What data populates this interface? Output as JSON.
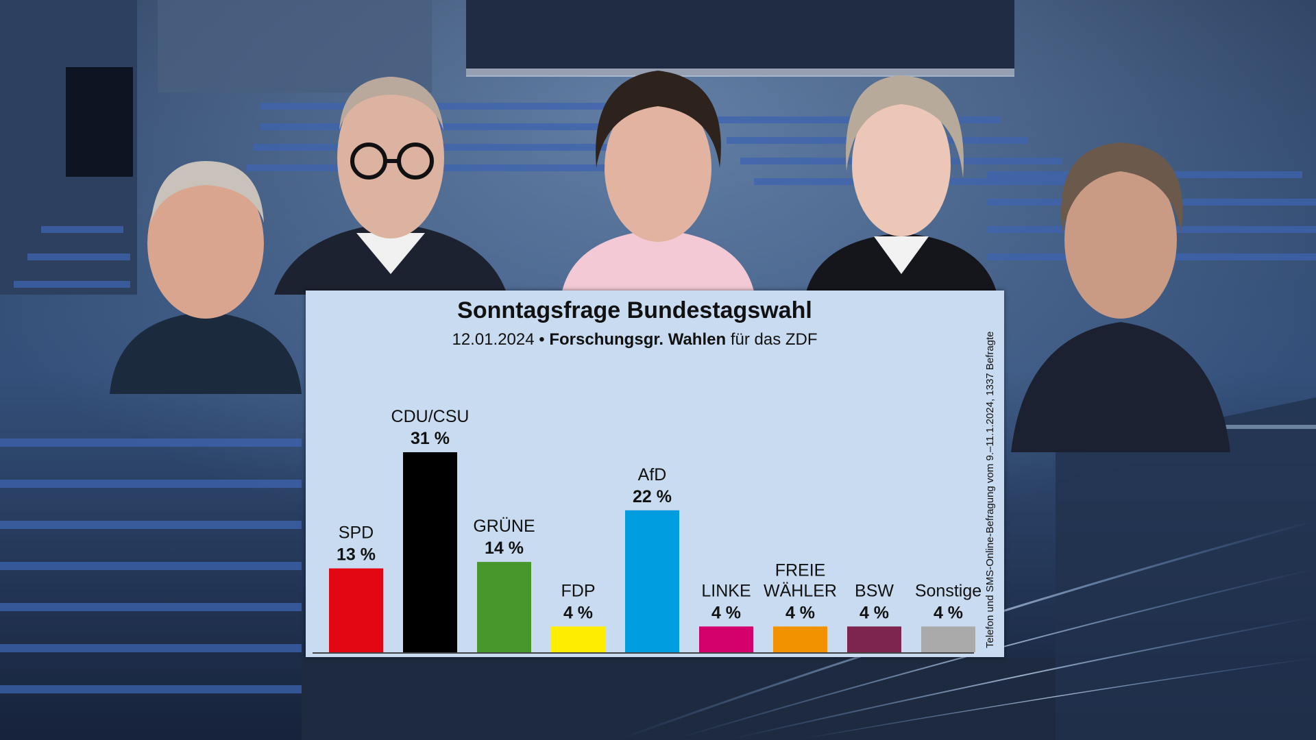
{
  "chart_data": {
    "type": "bar",
    "title": "Sonntagsfrage Bundestagswahl",
    "subtitle_date": "12.01.2024",
    "subtitle_separator": "•",
    "subtitle_institute": "Forschungsgr. Wahlen",
    "subtitle_suffix": "für das ZDF",
    "source_note": "Telefon und SMS-Online-Befragung vom 9.–11.1.2024, 1337 Befragte",
    "categories": [
      {
        "label": [
          "SPD"
        ],
        "value": 13,
        "value_label": "13 %",
        "color": "#e30613"
      },
      {
        "label": [
          "CDU/CSU"
        ],
        "value": 31,
        "value_label": "31 %",
        "color": "#000000"
      },
      {
        "label": [
          "GRÜNE"
        ],
        "value": 14,
        "value_label": "14 %",
        "color": "#46962b"
      },
      {
        "label": [
          "FDP"
        ],
        "value": 4,
        "value_label": "4 %",
        "color": "#ffed00"
      },
      {
        "label": [
          "AfD"
        ],
        "value": 22,
        "value_label": "22 %",
        "color": "#009ee0"
      },
      {
        "label": [
          "LINKE"
        ],
        "value": 4,
        "value_label": "4 %",
        "color": "#d4006b"
      },
      {
        "label": [
          "FREIE",
          "WÄHLER"
        ],
        "value": 4,
        "value_label": "4 %",
        "color": "#f39200"
      },
      {
        "label": [
          "BSW"
        ],
        "value": 4,
        "value_label": "4 %",
        "color": "#7d254f"
      },
      {
        "label": [
          "Sonstige"
        ],
        "value": 4,
        "value_label": "4 %",
        "color": "#aaaaaa"
      }
    ],
    "ylim": [
      0,
      31
    ],
    "grid": false,
    "legend": "none"
  },
  "background": {
    "hall_color": "#1b2a44",
    "seat_color": "#3d64b0",
    "panel_color": "#c8dbf0"
  }
}
